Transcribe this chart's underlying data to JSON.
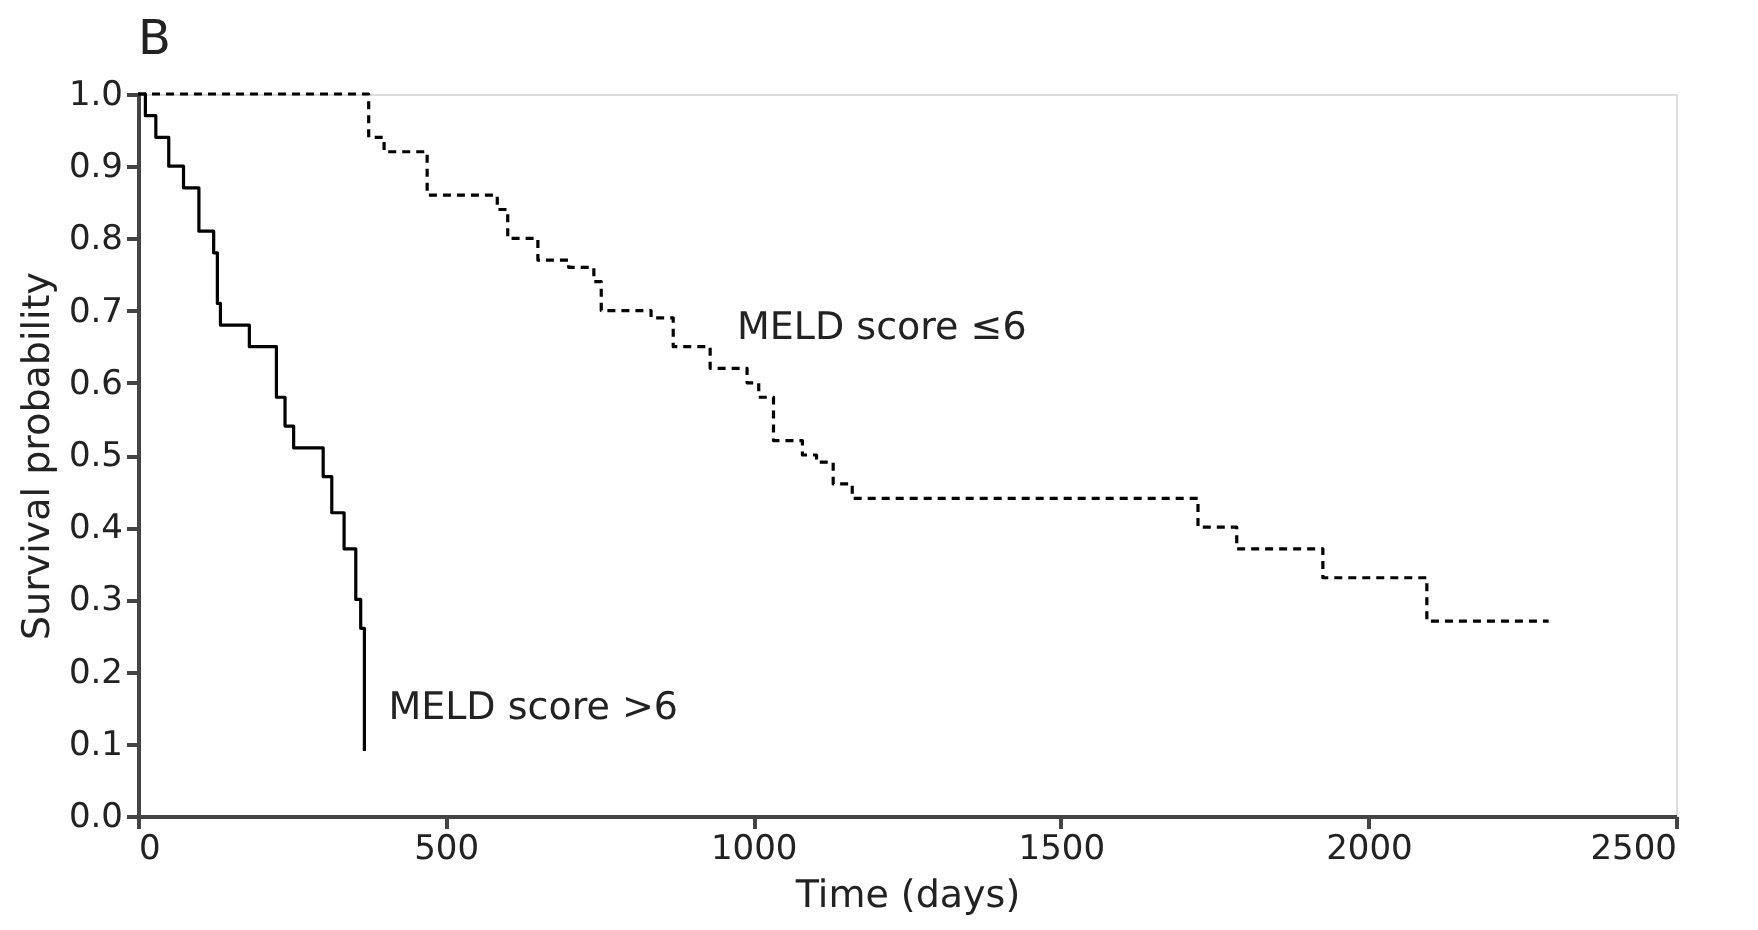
{
  "chart_data": {
    "type": "step",
    "title": "B",
    "xlabel": "Time (days)",
    "ylabel": "Survival probability",
    "xlim": [
      0,
      2500
    ],
    "xticks": [
      0,
      500,
      1000,
      1500,
      2000,
      2500
    ],
    "ylim": [
      0,
      1.0
    ],
    "yticks": [
      {
        "value": 0,
        "label": "0.0"
      },
      0.1,
      0.2,
      0.3,
      0.4,
      0.5,
      0.6,
      0.7,
      0.8,
      0.9,
      {
        "value": 1.0,
        "label": "1.0"
      }
    ],
    "grid": false,
    "marker": "none",
    "series": [
      {
        "name": "MELD score ≤6",
        "color": "#000000",
        "line_style": "dashed",
        "x": [
          0,
          375,
          400,
          470,
          584,
          601,
          650,
          700,
          741,
          753,
          834,
          870,
          930,
          990,
          1009,
          1033,
          1080,
          1103,
          1130,
          1161,
          1723,
          1786,
          1926,
          2095,
          2293
        ],
        "values": [
          1.0,
          0.94,
          0.92,
          0.86,
          0.84,
          0.8,
          0.77,
          0.76,
          0.74,
          0.7,
          0.69,
          0.65,
          0.62,
          0.6,
          0.58,
          0.52,
          0.5,
          0.49,
          0.46,
          0.44,
          0.4,
          0.37,
          0.33,
          0.27,
          0.27
        ]
      },
      {
        "name": "MELD score >6",
        "color": "#000000",
        "line_style": "solid",
        "x": [
          0,
          12,
          29,
          50,
          74,
          99,
          123,
          129,
          134,
          181,
          225,
          239,
          253,
          301,
          315,
          335,
          354,
          362,
          368
        ],
        "values": [
          1.0,
          0.97,
          0.94,
          0.9,
          0.87,
          0.81,
          0.78,
          0.71,
          0.68,
          0.65,
          0.58,
          0.54,
          0.51,
          0.47,
          0.42,
          0.37,
          0.3,
          0.26,
          0.09
        ]
      }
    ]
  }
}
